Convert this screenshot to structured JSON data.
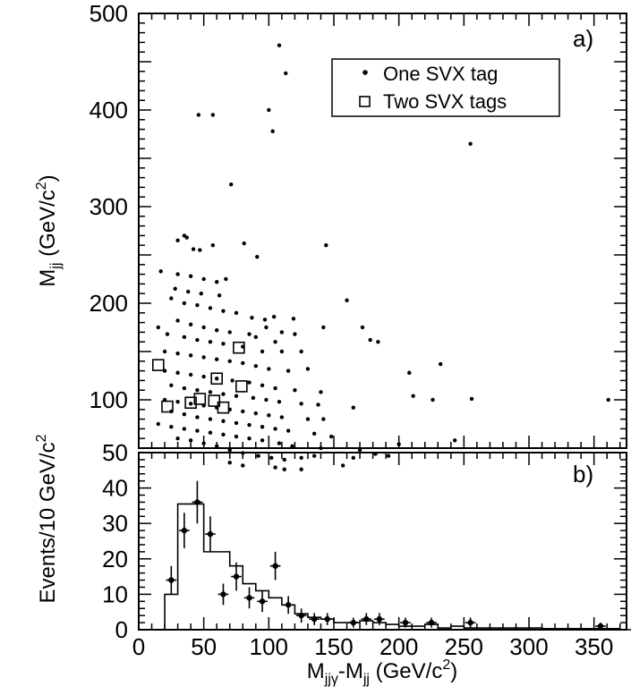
{
  "chart_data": [
    {
      "type": "scatter",
      "panel_label": "a)",
      "ylabel_main": "M",
      "ylabel_sub": "jj",
      "ylabel_unit": " (GeV/c",
      "ylabel_sup": "2",
      "ylabel_close": ")",
      "xlim": [
        0,
        375
      ],
      "ylim": [
        50,
        500
      ],
      "ytick_labels": [
        "100",
        "200",
        "300",
        "400",
        "500"
      ],
      "yticks": [
        100,
        200,
        300,
        400,
        500
      ],
      "legend_placement": "top-right",
      "series": [
        {
          "name": "One SVX tag",
          "marker": "dot",
          "points": [
            [
              108,
              467
            ],
            [
              113,
              438
            ],
            [
              255,
              365
            ],
            [
              46,
              395
            ],
            [
              57,
              395
            ],
            [
              100,
              400
            ],
            [
              103,
              378
            ],
            [
              71,
              323
            ],
            [
              35,
              270
            ],
            [
              37,
              268
            ],
            [
              30,
              265
            ],
            [
              42,
              256
            ],
            [
              47,
              255
            ],
            [
              57,
              260
            ],
            [
              81,
              262
            ],
            [
              91,
              248
            ],
            [
              144,
              260
            ],
            [
              67,
              225
            ],
            [
              17,
              233
            ],
            [
              30,
              230
            ],
            [
              40,
              228
            ],
            [
              50,
              225
            ],
            [
              60,
              222
            ],
            [
              28,
              215
            ],
            [
              38,
              212
            ],
            [
              48,
              210
            ],
            [
              62,
              208
            ],
            [
              25,
              205
            ],
            [
              35,
              200
            ],
            [
              45,
              198
            ],
            [
              55,
              195
            ],
            [
              65,
              192
            ],
            [
              75,
              190
            ],
            [
              160,
              203
            ],
            [
              87,
              185
            ],
            [
              97,
              183
            ],
            [
              104,
              186
            ],
            [
              119,
              184
            ],
            [
              142,
              175
            ],
            [
              172,
              175
            ],
            [
              178,
              162
            ],
            [
              184,
              160
            ],
            [
              208,
              128
            ],
            [
              232,
              137
            ],
            [
              211,
              104
            ],
            [
              226,
              100
            ],
            [
              256,
              101
            ],
            [
              361,
              100
            ],
            [
              98,
              175
            ],
            [
              110,
              170
            ],
            [
              120,
              168
            ],
            [
              30,
              182
            ],
            [
              40,
              178
            ],
            [
              50,
              175
            ],
            [
              60,
              172
            ],
            [
              70,
              170
            ],
            [
              85,
              168
            ],
            [
              90,
              165
            ],
            [
              15,
              175
            ],
            [
              22,
              168
            ],
            [
              35,
              165
            ],
            [
              45,
              162
            ],
            [
              55,
              160
            ],
            [
              65,
              158
            ],
            [
              80,
              155
            ],
            [
              105,
              160
            ],
            [
              95,
              150
            ],
            [
              110,
              150
            ],
            [
              125,
              150
            ],
            [
              20,
              150
            ],
            [
              30,
              148
            ],
            [
              40,
              146
            ],
            [
              50,
              144
            ],
            [
              60,
              142
            ],
            [
              70,
              140
            ],
            [
              80,
              138
            ],
            [
              90,
              135
            ],
            [
              100,
              132
            ],
            [
              115,
              130
            ],
            [
              130,
              132
            ],
            [
              20,
              130
            ],
            [
              30,
              128
            ],
            [
              40,
              126
            ],
            [
              50,
              124
            ],
            [
              60,
              122
            ],
            [
              72,
              120
            ],
            [
              85,
              118
            ],
            [
              95,
              115
            ],
            [
              105,
              112
            ],
            [
              120,
              110
            ],
            [
              140,
              108
            ],
            [
              25,
              115
            ],
            [
              35,
              112
            ],
            [
              45,
              110
            ],
            [
              55,
              108
            ],
            [
              65,
              106
            ],
            [
              75,
              104
            ],
            [
              88,
              102
            ],
            [
              98,
              100
            ],
            [
              108,
              98
            ],
            [
              125,
              96
            ],
            [
              138,
              95
            ],
            [
              20,
              100
            ],
            [
              30,
              98
            ],
            [
              40,
              96
            ],
            [
              50,
              94
            ],
            [
              60,
              92
            ],
            [
              70,
              90
            ],
            [
              80,
              88
            ],
            [
              90,
              86
            ],
            [
              100,
              84
            ],
            [
              110,
              82
            ],
            [
              130,
              80
            ],
            [
              142,
              80
            ],
            [
              165,
              92
            ],
            [
              25,
              88
            ],
            [
              35,
              85
            ],
            [
              45,
              82
            ],
            [
              55,
              80
            ],
            [
              65,
              78
            ],
            [
              75,
              76
            ],
            [
              85,
              74
            ],
            [
              95,
              72
            ],
            [
              105,
              70
            ],
            [
              115,
              68
            ],
            [
              135,
              65
            ],
            [
              148,
              62
            ],
            [
              15,
              75
            ],
            [
              25,
              72
            ],
            [
              35,
              70
            ],
            [
              45,
              68
            ],
            [
              55,
              66
            ],
            [
              65,
              64
            ],
            [
              75,
              62
            ],
            [
              85,
              60
            ],
            [
              95,
              58
            ],
            [
              108,
              55
            ],
            [
              118,
              52
            ],
            [
              140,
              50
            ],
            [
              30,
              60
            ],
            [
              40,
              58
            ],
            [
              50,
              55
            ],
            [
              60,
              52
            ],
            [
              70,
              48
            ],
            [
              80,
              45
            ],
            [
              92,
              42
            ],
            [
              102,
              40
            ],
            [
              112,
              38
            ],
            [
              125,
              40
            ],
            [
              135,
              42
            ],
            [
              170,
              48
            ],
            [
              182,
              44
            ],
            [
              192,
              42
            ],
            [
              200,
              54
            ],
            [
              243,
              58
            ],
            [
              70,
              35
            ],
            [
              80,
              32
            ],
            [
              105,
              30
            ],
            [
              112,
              28
            ],
            [
              125,
              28
            ],
            [
              157,
              32
            ],
            [
              165,
              40
            ]
          ]
        },
        {
          "name": "Two SVX tags",
          "marker": "open-square",
          "points": [
            [
              15,
              136
            ],
            [
              22,
              93
            ],
            [
              40,
              97
            ],
            [
              47,
              101
            ],
            [
              58,
              99
            ],
            [
              60,
              122
            ],
            [
              65,
              92
            ],
            [
              77,
              154
            ],
            [
              79,
              114
            ]
          ]
        }
      ]
    },
    {
      "type": "bar",
      "panel_label": "b)",
      "ylabel": "Events/10 GeV/c",
      "ylabel_sup": "2",
      "xlabel_a": "M",
      "xlabel_a_sub": "jjγ",
      "xlabel_mid": "-M",
      "xlabel_b_sub": "jj",
      "xlabel_unit": " (GeV/c",
      "xlabel_sup": "2",
      "xlabel_close": ")",
      "xlim": [
        0,
        375
      ],
      "ylim": [
        0,
        50
      ],
      "xtick_labels": [
        "0",
        "50",
        "100",
        "150",
        "200",
        "250",
        "300",
        "350"
      ],
      "xticks": [
        0,
        50,
        100,
        150,
        200,
        250,
        300,
        350
      ],
      "ytick_labels": [
        "0",
        "10",
        "20",
        "30",
        "40",
        "50"
      ],
      "yticks": [
        0,
        10,
        20,
        30,
        40,
        50
      ],
      "histogram": {
        "bin_width": 10,
        "edges_start": 0,
        "values": [
          0,
          0,
          10,
          35.5,
          35.5,
          22,
          22,
          18,
          13,
          11,
          9,
          7,
          4.5,
          3.5,
          3,
          2,
          2,
          2.5,
          2,
          1.5,
          1,
          1,
          1.5,
          0.5,
          1,
          0.5,
          0.5,
          0.5,
          0.5,
          0.5,
          0.5,
          0.3,
          0.3,
          0.3,
          0.3,
          0.3,
          0.3,
          0
        ]
      },
      "data_points": [
        {
          "x": 25,
          "y": 14,
          "err": 4
        },
        {
          "x": 35,
          "y": 28,
          "err": 5
        },
        {
          "x": 45,
          "y": 36,
          "err": 6
        },
        {
          "x": 55,
          "y": 27,
          "err": 5
        },
        {
          "x": 65,
          "y": 10,
          "err": 3
        },
        {
          "x": 75,
          "y": 15,
          "err": 4
        },
        {
          "x": 85,
          "y": 9,
          "err": 3
        },
        {
          "x": 95,
          "y": 8,
          "err": 3
        },
        {
          "x": 105,
          "y": 18,
          "err": 4
        },
        {
          "x": 115,
          "y": 7,
          "err": 2.5
        },
        {
          "x": 125,
          "y": 4,
          "err": 2
        },
        {
          "x": 135,
          "y": 3,
          "err": 1.7
        },
        {
          "x": 145,
          "y": 3,
          "err": 1.7
        },
        {
          "x": 165,
          "y": 2,
          "err": 1.4
        },
        {
          "x": 175,
          "y": 3,
          "err": 1.7
        },
        {
          "x": 185,
          "y": 3,
          "err": 1.7
        },
        {
          "x": 205,
          "y": 2,
          "err": 1.4
        },
        {
          "x": 225,
          "y": 2,
          "err": 1.4
        },
        {
          "x": 255,
          "y": 2,
          "err": 1.4
        },
        {
          "x": 355,
          "y": 1,
          "err": 1
        }
      ]
    }
  ]
}
